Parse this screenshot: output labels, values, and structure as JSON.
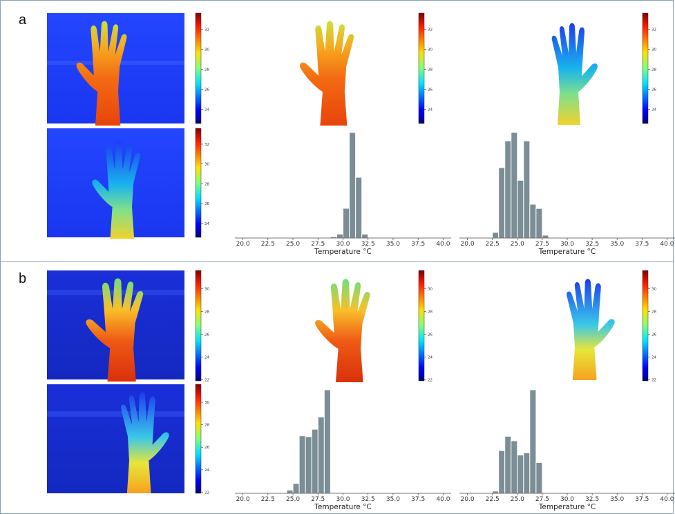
{
  "panels": [
    {
      "label": "a",
      "colorbar_ticks": [
        "32",
        "30",
        "28",
        "26",
        "24"
      ],
      "colorbar_range": [
        22.6,
        33.6
      ],
      "histograms": [
        {
          "bins_start": 20,
          "bin_width": 0.625,
          "values": [
            0,
            0,
            0,
            0,
            0,
            0,
            0,
            0,
            0,
            0,
            0,
            0,
            0,
            1,
            2,
            6,
            45,
            160,
            92,
            6,
            0,
            0,
            0,
            0,
            0,
            0,
            0,
            0,
            0,
            0,
            0,
            0
          ]
        },
        {
          "bins_start": 20,
          "bin_width": 0.625,
          "values": [
            0,
            0,
            0,
            0,
            4,
            50,
            69,
            75,
            41,
            69,
            24,
            21,
            2,
            0,
            0,
            0,
            0,
            0,
            0,
            0,
            0,
            0,
            0,
            0,
            0,
            0,
            0,
            0,
            0,
            0,
            0,
            0
          ]
        }
      ]
    },
    {
      "label": "b",
      "colorbar_ticks": [
        "30",
        "28",
        "26",
        "24",
        "22"
      ],
      "colorbar_range": [
        21.9,
        31.6
      ],
      "histograms": [
        {
          "bins_start": 20,
          "bin_width": 0.625,
          "values": [
            0,
            0,
            0,
            0,
            0,
            0,
            0,
            4,
            12,
            70,
            69,
            78,
            93,
            126,
            0,
            0,
            0,
            0,
            0,
            0,
            0,
            0,
            0,
            0,
            0,
            0,
            0,
            0,
            0,
            0,
            0,
            0
          ]
        },
        {
          "bins_start": 20,
          "bin_width": 0.625,
          "values": [
            0,
            0,
            0,
            0,
            3,
            57,
            76,
            70,
            51,
            54,
            138,
            41,
            0,
            0,
            0,
            0,
            0,
            0,
            0,
            0,
            0,
            0,
            0,
            0,
            0,
            0,
            0,
            0,
            0,
            0,
            0,
            0
          ]
        }
      ]
    }
  ],
  "chart_data": [
    {
      "type": "bar",
      "panel": "a",
      "xlabel": "Temperature °C",
      "xlim": [
        19.2,
        40.8
      ],
      "xticks": [
        20.0,
        22.5,
        25.0,
        27.5,
        30.0,
        32.5,
        35.0,
        37.5,
        40.0
      ],
      "xtick_labels": [
        "20.0",
        "22.5",
        "25.0",
        "27.5",
        "30.0",
        "32.5",
        "35.0",
        "37.5",
        "40.0"
      ]
    },
    {
      "type": "bar",
      "panel": "a",
      "xlabel": "Temperature °C",
      "xlim": [
        19.2,
        40.8
      ],
      "xticks": [
        20.0,
        22.5,
        25.0,
        27.5,
        30.0,
        32.5,
        35.0,
        37.5,
        40.0
      ],
      "xtick_labels": [
        "20.0",
        "22.5",
        "25.0",
        "27.5",
        "30.0",
        "32.5",
        "35.0",
        "37.5",
        "40.0"
      ]
    },
    {
      "type": "bar",
      "panel": "b",
      "xlabel": "Temperature °C",
      "xlim": [
        19.2,
        40.8
      ],
      "xticks": [
        20.0,
        22.5,
        25.0,
        27.5,
        30.0,
        32.5,
        35.0,
        37.5,
        40.0
      ],
      "xtick_labels": [
        "20.0",
        "22.5",
        "25.0",
        "27.5",
        "30.0",
        "32.5",
        "35.0",
        "37.5",
        "40.0"
      ]
    },
    {
      "type": "bar",
      "panel": "b",
      "xlabel": "Temperature °C",
      "xlim": [
        19.2,
        40.8
      ],
      "xticks": [
        20.0,
        22.5,
        25.0,
        27.5,
        30.0,
        32.5,
        35.0,
        37.5,
        40.0
      ],
      "xtick_labels": [
        "20.0",
        "22.5",
        "25.0",
        "27.5",
        "30.0",
        "32.5",
        "35.0",
        "37.5",
        "40.0"
      ]
    }
  ],
  "colors": {
    "bar": "#7b8d95",
    "frame": "#8aa0b4",
    "background_cold": "#1f3cff"
  }
}
